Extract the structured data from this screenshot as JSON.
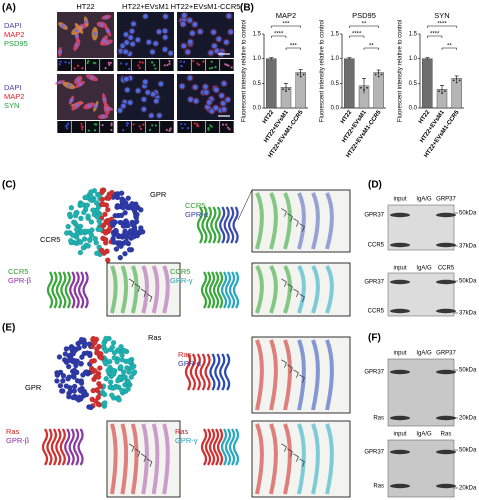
{
  "panel_labels": [
    "(A)",
    "(B)",
    "(C)",
    "(D)",
    "(E)",
    "(F)"
  ],
  "panel_a": {
    "columns": [
      "HT22",
      "HT22+EVsM1",
      "HT22+EVsM1-CCR5"
    ],
    "rows": [
      [
        "DAPI",
        "MAP2",
        "PSD95"
      ],
      [
        "DAPI",
        "MAP2",
        "SYN"
      ]
    ]
  },
  "chart_data": [
    {
      "type": "bar",
      "title": "MAP2",
      "ylabel": "Fluorescent intensity relative to control",
      "categories": [
        "HT22",
        "HT22+EVsM1",
        "HT22+EVsM1-CCR5"
      ],
      "values": [
        1.0,
        0.42,
        0.72
      ],
      "errors": [
        0.02,
        0.08,
        0.06
      ],
      "colors": [
        "#6e6e6e",
        "#b5b5b5",
        "#b5b5b5"
      ],
      "ylim": [
        0,
        1.5
      ],
      "yticks": [
        {
          "value": 0,
          "label": "0.0"
        },
        {
          "value": 0.5,
          "label": "0.5"
        },
        {
          "value": 1,
          "label": "1.0"
        },
        {
          "value": 1.5,
          "label": "1.5"
        }
      ],
      "annotations": [
        "***",
        "****",
        "***"
      ]
    },
    {
      "type": "bar",
      "title": "PSD95",
      "ylabel": "Fluorescent intensity relative to control",
      "categories": [
        "HT22",
        "HT22+EVsM1",
        "HT22+EVsM1-CCR5"
      ],
      "values": [
        1.0,
        0.45,
        0.72
      ],
      "errors": [
        0.02,
        0.15,
        0.05
      ],
      "colors": [
        "#6e6e6e",
        "#b5b5b5",
        "#b5b5b5"
      ],
      "ylim": [
        0,
        1.5
      ],
      "yticks": [
        {
          "value": 0,
          "label": "0.0"
        },
        {
          "value": 0.5,
          "label": "0.5"
        },
        {
          "value": 1,
          "label": "1.0"
        },
        {
          "value": 1.5,
          "label": "1.5"
        }
      ],
      "annotations": [
        "**",
        "****",
        "**"
      ]
    },
    {
      "type": "bar",
      "title": "SYN",
      "ylabel": "Fluorescent intensity relative to control",
      "categories": [
        "HT22",
        "HT22+EVsM1",
        "HT22+EVsM1-CCR5"
      ],
      "values": [
        1.0,
        0.38,
        0.6
      ],
      "errors": [
        0.02,
        0.08,
        0.05
      ],
      "colors": [
        "#6e6e6e",
        "#b5b5b5",
        "#b5b5b5"
      ],
      "ylim": [
        0,
        1.5
      ],
      "yticks": [
        {
          "value": 0,
          "label": "0.0"
        },
        {
          "value": 0.5,
          "label": "0.5"
        },
        {
          "value": 1,
          "label": "1.0"
        },
        {
          "value": 1.5,
          "label": "1.5"
        }
      ],
      "annotations": [
        "****",
        "****",
        "**"
      ]
    }
  ],
  "panel_c": {
    "labels": [
      "GPR",
      "CCR5",
      "CCR5",
      "GPR-α",
      "CCR5",
      "GPR-β",
      "CCR5",
      "GPR-γ"
    ]
  },
  "panel_d": {
    "blots": [
      {
        "lanes": [
          "input",
          "IgA/G",
          "GRP37"
        ],
        "bands": [
          "GPR37",
          "CCR5"
        ],
        "markers": [
          "50kDa",
          "37kDa"
        ]
      },
      {
        "lanes": [
          "input",
          "IgA/G",
          "CCR5"
        ],
        "bands": [
          "GPR37",
          "CCR5"
        ],
        "markers": [
          "50kDa",
          "37kDa"
        ]
      }
    ]
  },
  "panel_e": {
    "labels": [
      "Ras",
      "GPR",
      "Ras",
      "GPR-α",
      "Ras",
      "GPR-β",
      "Ras",
      "GPR-γ"
    ]
  },
  "panel_f": {
    "blots": [
      {
        "lanes": [
          "input",
          "IgA/G",
          "GRP37"
        ],
        "bands": [
          "GPR37",
          "Ras"
        ],
        "markers": [
          "50kDa",
          "20kDa"
        ]
      },
      {
        "lanes": [
          "input",
          "IgA/G",
          "Ras"
        ],
        "bands": [
          "GPR37",
          "Ras"
        ],
        "markers": [
          "50kDa",
          "20kDa"
        ]
      }
    ]
  }
}
